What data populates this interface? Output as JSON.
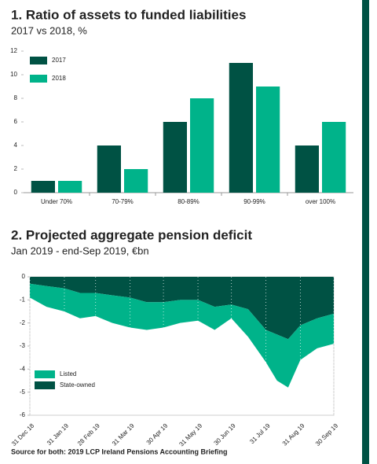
{
  "chart_data": [
    {
      "type": "bar",
      "title": "1. Ratio of assets to funded liabilities",
      "subtitle": "2017 vs 2018, %",
      "categories": [
        "Under 70%",
        "70-79%",
        "80-89%",
        "90-99%",
        "over 100%"
      ],
      "series": [
        {
          "name": "2017",
          "color": "#005244",
          "values": [
            1,
            4,
            6,
            11,
            4
          ]
        },
        {
          "name": "2018",
          "color": "#00b38a",
          "values": [
            1,
            2,
            8,
            9,
            6
          ]
        }
      ],
      "ylim": [
        0,
        12
      ],
      "yticks": [
        0,
        2,
        4,
        6,
        8,
        10,
        12
      ],
      "legend": "top-left"
    },
    {
      "type": "area",
      "stacked": true,
      "title": "2. Projected aggregate pension deficit",
      "subtitle": "Jan 2019 - end-Sep 2019, €bn",
      "x": [
        "2018-12-31",
        "2019-01-15",
        "2019-01-31",
        "2019-02-14",
        "2019-02-28",
        "2019-03-15",
        "2019-03-31",
        "2019-04-15",
        "2019-04-30",
        "2019-05-15",
        "2019-05-31",
        "2019-06-15",
        "2019-06-30",
        "2019-07-15",
        "2019-07-31",
        "2019-08-10",
        "2019-08-20",
        "2019-08-31",
        "2019-09-15",
        "2019-09-30"
      ],
      "series": [
        {
          "name": "State-owned",
          "color": "#005244",
          "values": [
            -0.3,
            -0.4,
            -0.5,
            -0.7,
            -0.7,
            -0.8,
            -0.9,
            -1.1,
            -1.1,
            -1.0,
            -1.0,
            -1.3,
            -1.2,
            -1.4,
            -2.3,
            -2.5,
            -2.7,
            -2.1,
            -1.8,
            -1.6
          ]
        },
        {
          "name": "Listed",
          "color": "#00b38a",
          "values": [
            -0.6,
            -0.9,
            -1.0,
            -1.1,
            -1.0,
            -1.2,
            -1.3,
            -1.2,
            -1.1,
            -1.0,
            -0.9,
            -1.0,
            -0.6,
            -1.2,
            -1.4,
            -2.0,
            -2.1,
            -1.5,
            -1.3,
            -1.3
          ]
        }
      ],
      "xticks": [
        {
          "value": "2018-12-31",
          "label": "31 Dec 18"
        },
        {
          "value": "2019-01-31",
          "label": "31 Jan 19"
        },
        {
          "value": "2019-02-28",
          "label": "28 Feb 19"
        },
        {
          "value": "2019-03-31",
          "label": "31 Mar 19"
        },
        {
          "value": "2019-04-30",
          "label": "30 Apr 19"
        },
        {
          "value": "2019-05-31",
          "label": "31 May 19"
        },
        {
          "value": "2019-06-30",
          "label": "30 Jun 19"
        },
        {
          "value": "2019-07-31",
          "label": "31 Jul 19"
        },
        {
          "value": "2019-08-31",
          "label": "31 Aug 19"
        },
        {
          "value": "2019-09-30",
          "label": "30 Sep 19"
        }
      ],
      "ylim": [
        -6,
        0
      ],
      "yticks": [
        0,
        -1,
        -2,
        -3,
        -4,
        -5,
        -6
      ],
      "grid": true,
      "legend": "bottom-left"
    }
  ],
  "source": "Source for both: 2019 LCP Ireland Pensions Accounting Briefing"
}
